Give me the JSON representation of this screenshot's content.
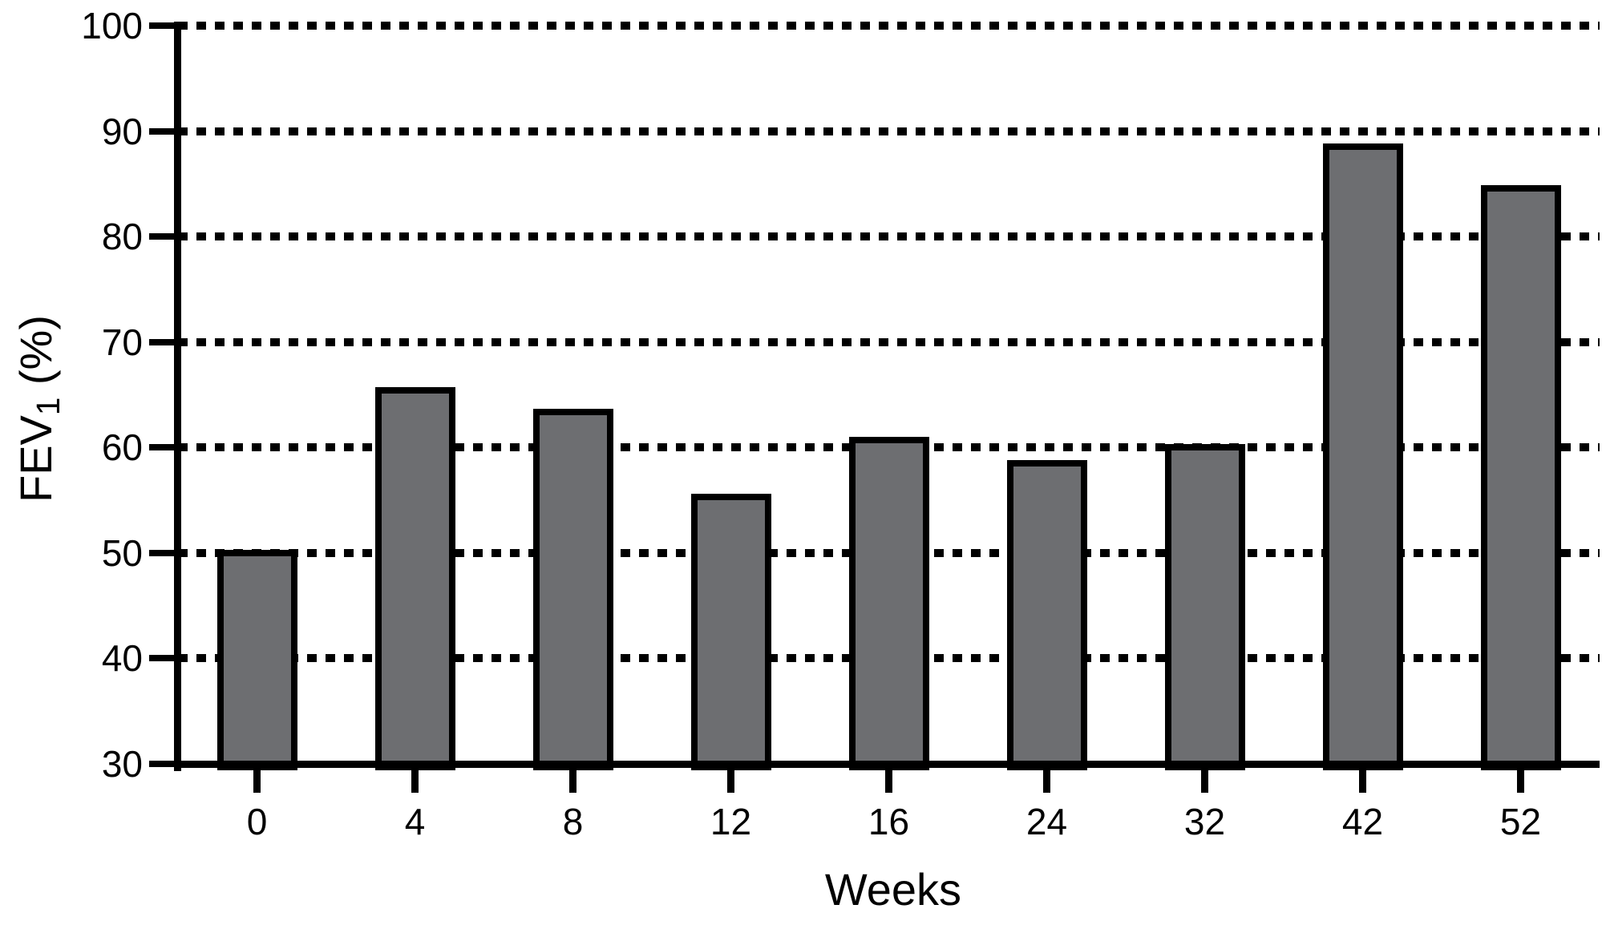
{
  "figure": {
    "background": "#ffffff"
  },
  "chart_data": {
    "type": "bar",
    "title": "",
    "xlabel": "Weeks",
    "ylabel": {
      "plain": "FEV1 (%)",
      "base": "FEV",
      "sub": "1",
      "rest": " (%)"
    },
    "categories": [
      "0",
      "4",
      "8",
      "12",
      "16",
      "24",
      "32",
      "42",
      "52"
    ],
    "values": [
      50,
      65.4,
      63.4,
      55.3,
      60.7,
      58.5,
      60,
      88.5,
      84.6
    ],
    "ylim": [
      30,
      100
    ],
    "yticks": [
      30,
      40,
      50,
      60,
      70,
      80,
      90,
      100
    ],
    "grid": {
      "horizontal": true,
      "style": "square-dash dotted",
      "color": "#000000",
      "at": [
        40,
        50,
        60,
        70,
        80,
        90,
        100
      ]
    },
    "legend_position": "none",
    "colors": {
      "bar_fill": "#6d6e71",
      "bar_border": "#000000",
      "axis": "#000000",
      "text": "#000000"
    }
  }
}
